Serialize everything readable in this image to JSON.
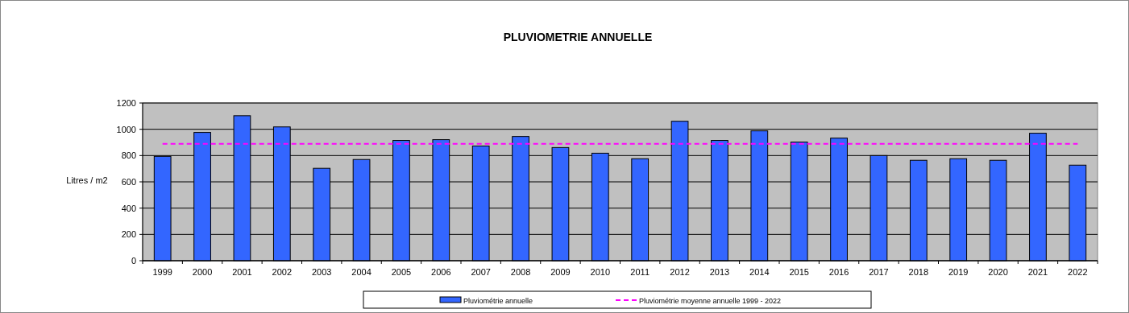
{
  "chart_data": {
    "type": "bar",
    "title": "PLUVIOMETRIE ANNUELLE",
    "ylabel": "Litres / m2",
    "categories": [
      "1999",
      "2000",
      "2001",
      "2002",
      "2003",
      "2004",
      "2005",
      "2006",
      "2007",
      "2008",
      "2009",
      "2010",
      "2011",
      "2012",
      "2013",
      "2014",
      "2015",
      "2016",
      "2017",
      "2018",
      "2019",
      "2020",
      "2021",
      "2022"
    ],
    "series": [
      {
        "name": "Pluviométrie annuelle",
        "color": "#3366ff",
        "values": [
          794,
          976,
          1103,
          1018,
          703,
          770,
          915,
          921,
          873,
          945,
          861,
          818,
          776,
          1061,
          915,
          988,
          903,
          933,
          800,
          764,
          776,
          764,
          970,
          727
        ]
      },
      {
        "name": "Pluviométrie moyenne annuelle 1999 - 2022",
        "type": "line",
        "color": "#ff00ff",
        "line_style": "dashed",
        "values": [
          889,
          889,
          889,
          889,
          889,
          889,
          889,
          889,
          889,
          889,
          889,
          889,
          889,
          889,
          889,
          889,
          889,
          889,
          889,
          889,
          889,
          889,
          889,
          889
        ]
      }
    ],
    "ylim": [
      0,
      1200
    ],
    "yticks": [
      0,
      200,
      400,
      600,
      800,
      1000,
      1200
    ],
    "grid": "y",
    "legend": "bottom"
  }
}
